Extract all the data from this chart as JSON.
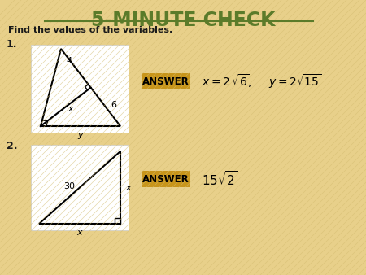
{
  "title": "5-MINUTE CHECK",
  "title_color": "#5B7B2A",
  "title_underline_color": "#5B7B2A",
  "subtitle": "Find the values of the variables.",
  "bg_color": "#E8D08A",
  "bg_line_color": "#D4BC70",
  "white_box_color": "#FFFFFF",
  "problem1_label": "1.",
  "problem2_label": "2.",
  "answer_box_color": "#C8951A",
  "answer_text": "ANSWER",
  "label_4": "4",
  "label_6": "6",
  "label_x": "x",
  "label_y": "y",
  "label_30": "30",
  "ans1_part1": "x = 2",
  "ans1_sqrt6": "6",
  "ans1_comma": ",",
  "ans1_part2": "y = 2",
  "ans1_sqrt15": "15",
  "ans2_coef": "15",
  "ans2_sqrt2": "2",
  "fig_w": 4.5,
  "fig_h": 3.38,
  "dpi": 100
}
